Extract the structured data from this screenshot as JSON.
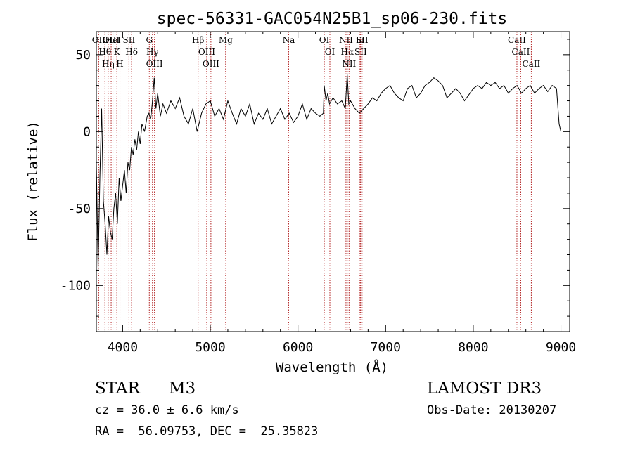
{
  "chart_data": {
    "type": "line",
    "title": "spec-56331-GAC054N25B1_sp06-230.fits",
    "xlabel": "Wavelength (Å)",
    "ylabel": "Flux (relative)",
    "xlim": [
      3700,
      9100
    ],
    "ylim": [
      -130,
      65
    ],
    "xticks": [
      4000,
      5000,
      6000,
      7000,
      8000,
      9000
    ],
    "yticks": [
      -100,
      -50,
      0,
      50
    ],
    "line_color": "#000000",
    "marker_color": "#b22222",
    "series": [
      {
        "x": [
          3700,
          3720,
          3740,
          3760,
          3780,
          3800,
          3820,
          3840,
          3860,
          3880,
          3900,
          3920,
          3940,
          3960,
          3980,
          4000,
          4020,
          4040,
          4060,
          4080,
          4100,
          4120,
          4140,
          4160,
          4180,
          4200,
          4220,
          4250,
          4280,
          4300,
          4320,
          4340,
          4360,
          4380,
          4400,
          4430,
          4460,
          4500,
          4550,
          4600,
          4650,
          4700,
          4750,
          4800,
          4850,
          4900,
          4950,
          5000,
          5050,
          5100,
          5150,
          5200,
          5250,
          5300,
          5350,
          5400,
          5450,
          5500,
          5550,
          5600,
          5650,
          5700,
          5750,
          5800,
          5850,
          5900,
          5950,
          6000,
          6050,
          6100,
          6150,
          6200,
          6250,
          6290,
          6300,
          6320,
          6340,
          6360,
          6380,
          6400,
          6450,
          6500,
          6540,
          6562,
          6580,
          6600,
          6650,
          6700,
          6750,
          6800,
          6850,
          6900,
          6950,
          7000,
          7050,
          7100,
          7150,
          7200,
          7250,
          7300,
          7350,
          7400,
          7450,
          7500,
          7550,
          7600,
          7650,
          7700,
          7750,
          7800,
          7850,
          7900,
          7950,
          8000,
          8050,
          8100,
          8150,
          8200,
          8250,
          8300,
          8350,
          8400,
          8450,
          8500,
          8550,
          8600,
          8650,
          8700,
          8750,
          8800,
          8850,
          8900,
          8950,
          8980,
          9000
        ],
        "y": [
          -20,
          -90,
          -30,
          15,
          -45,
          -60,
          -80,
          -55,
          -65,
          -70,
          -50,
          -40,
          -60,
          -30,
          -45,
          -35,
          -25,
          -40,
          -20,
          -25,
          -10,
          -15,
          -5,
          -12,
          0,
          -8,
          5,
          0,
          10,
          12,
          8,
          20,
          35,
          15,
          25,
          10,
          18,
          12,
          20,
          15,
          22,
          10,
          5,
          15,
          0,
          12,
          18,
          20,
          10,
          15,
          8,
          20,
          12,
          5,
          15,
          10,
          18,
          5,
          12,
          8,
          15,
          5,
          10,
          15,
          8,
          12,
          6,
          10,
          18,
          8,
          15,
          12,
          10,
          12,
          30,
          20,
          25,
          18,
          20,
          22,
          18,
          20,
          15,
          37,
          18,
          20,
          15,
          12,
          15,
          18,
          22,
          20,
          25,
          28,
          30,
          25,
          22,
          20,
          28,
          30,
          22,
          25,
          30,
          32,
          35,
          33,
          30,
          22,
          25,
          28,
          25,
          20,
          24,
          28,
          30,
          28,
          32,
          30,
          32,
          28,
          30,
          25,
          28,
          30,
          25,
          28,
          30,
          25,
          28,
          30,
          26,
          30,
          28,
          5,
          0
        ]
      }
    ],
    "lines": [
      {
        "label": "Hθ",
        "x": 3798
      },
      {
        "label": "OII",
        "x": 3727
      },
      {
        "label": "OIII",
        "x": 3869
      },
      {
        "label": "Hη",
        "x": 3835
      },
      {
        "label": "K",
        "x": 3934
      },
      {
        "label": "H",
        "x": 3969
      },
      {
        "label": "HeI",
        "x": 3889
      },
      {
        "label": "SII",
        "x": 4072
      },
      {
        "label": "Hδ",
        "x": 4102
      },
      {
        "label": "OIII",
        "x": 4363
      },
      {
        "label": "Hγ",
        "x": 4340
      },
      {
        "label": "G",
        "x": 4304
      },
      {
        "label": "OIII",
        "x": 5007
      },
      {
        "label": "OIII",
        "x": 4959
      },
      {
        "label": "Hβ",
        "x": 4861
      },
      {
        "label": "Mg",
        "x": 5175
      },
      {
        "label": "Na",
        "x": 5894
      },
      {
        "label": "OI",
        "x": 6300
      },
      {
        "label": "OI",
        "x": 6364
      },
      {
        "label": "Hα",
        "x": 6563
      },
      {
        "label": "NII",
        "x": 6548
      },
      {
        "label": "NII",
        "x": 6583
      },
      {
        "label": "SII",
        "x": 6716
      },
      {
        "label": "SII",
        "x": 6731
      },
      {
        "label": "Li",
        "x": 6708
      },
      {
        "label": "CaII",
        "x": 8542
      },
      {
        "label": "CaII",
        "x": 8498
      },
      {
        "label": "CaII",
        "x": 8662
      }
    ]
  },
  "info": {
    "object_class": "STAR",
    "subclass": "M3",
    "survey": "LAMOST DR3",
    "redshift": "cz = 36.0 ± 6.6 km/s",
    "obs_date": "Obs-Date: 20130207",
    "coords": "RA =  56.09753, DEC =  25.35823"
  }
}
